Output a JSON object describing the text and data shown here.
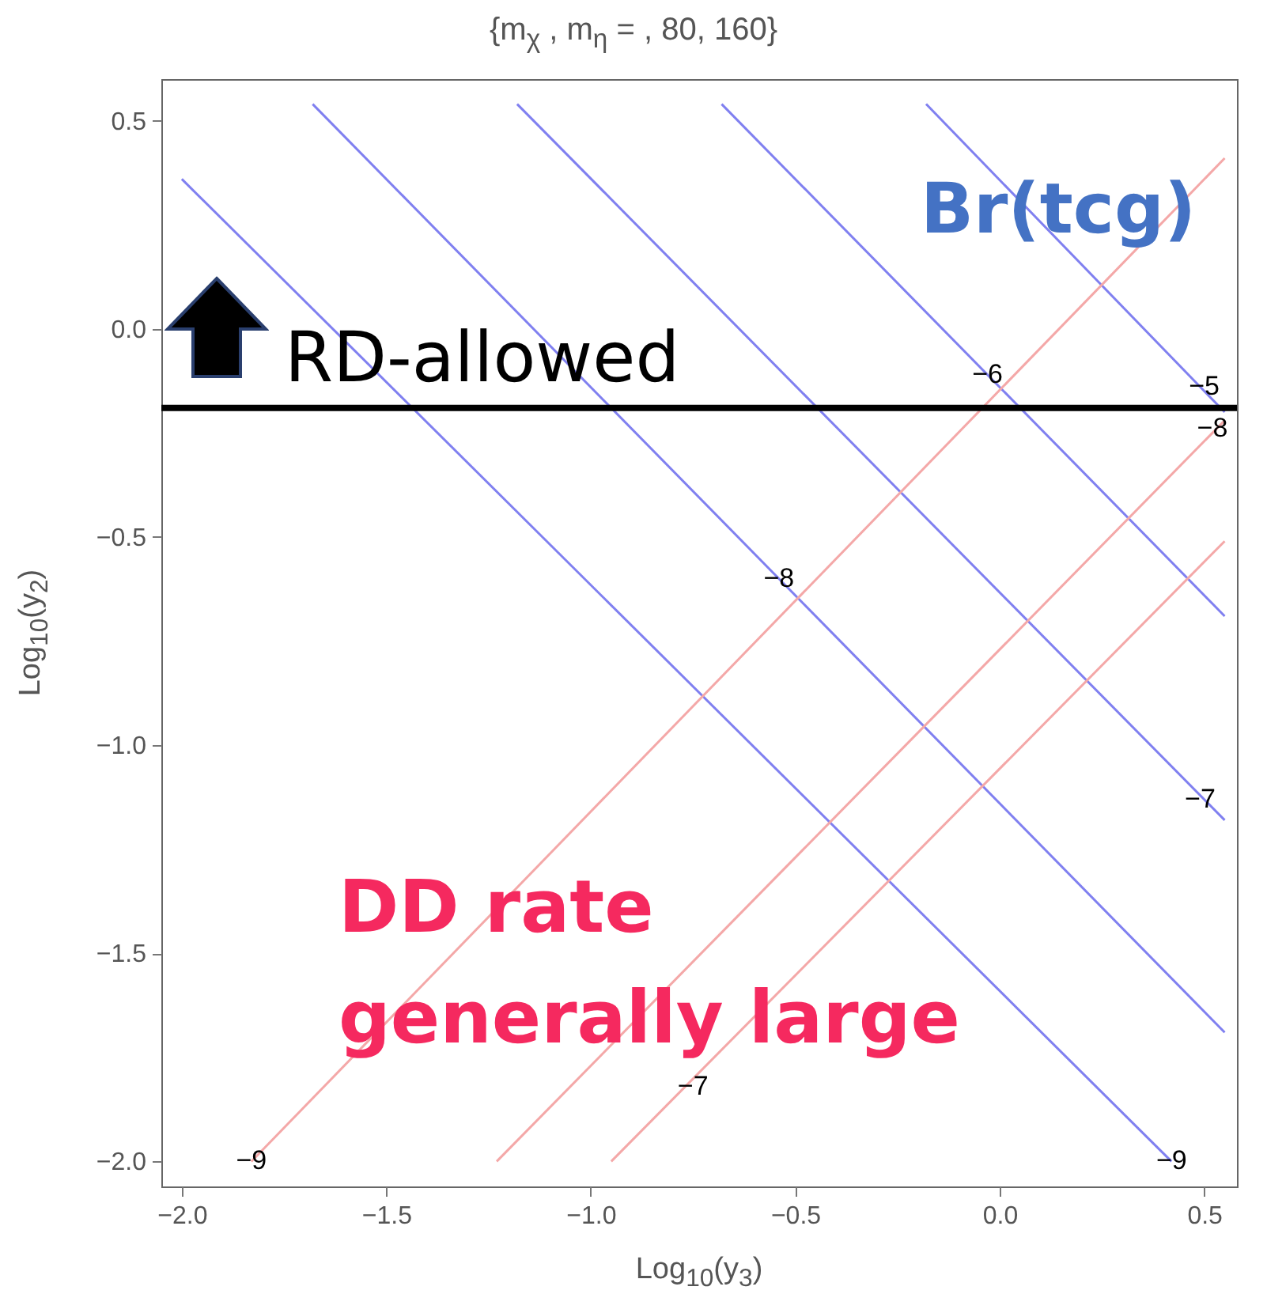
{
  "chart_data": {
    "type": "line",
    "title": "{m$_{χ}$ , m$_{η}$ = , 80, 160}",
    "xlabel": "Log$_{10}$(y$_{3}$)",
    "ylabel": "Log$_{10}$(y$_{2}$)",
    "series": [
      {
        "color": "#8080f0",
        "x": [
          -2.0,
          0.42
        ],
        "values": [
          0.36,
          -2.0
        ]
      },
      {
        "color": "#8080f0",
        "x": [
          -1.68,
          0.55
        ],
        "values": [
          0.54,
          -1.69
        ]
      },
      {
        "color": "#8080f0",
        "x": [
          -1.18,
          0.55
        ],
        "values": [
          0.54,
          -1.18
        ]
      },
      {
        "color": "#8080f0",
        "x": [
          -0.68,
          0.55
        ],
        "values": [
          0.54,
          -0.69
        ]
      },
      {
        "color": "#8080f0",
        "x": [
          -0.18,
          0.55
        ],
        "values": [
          0.54,
          -0.2
        ]
      },
      {
        "color": "#f4a8a8",
        "x": [
          -1.83,
          0.55
        ],
        "values": [
          -2.0,
          0.41
        ]
      },
      {
        "color": "#f4a8a8",
        "x": [
          -1.23,
          0.55
        ],
        "values": [
          -2.0,
          -0.22
        ]
      },
      {
        "color": "#f4a8a8",
        "x": [
          -0.95,
          0.55
        ],
        "values": [
          -2.0,
          -0.51
        ]
      }
    ],
    "xlim": [
      -2.05,
      0.58
    ],
    "ylim": [
      -2.06,
      0.6
    ],
    "xticks": [
      {
        "value": -2,
        "label": "−2.0"
      },
      {
        "value": -1.5,
        "label": "−1.5"
      },
      {
        "value": -1,
        "label": "−1.0"
      },
      {
        "value": -0.5,
        "label": "−0.5"
      },
      {
        "value": 0,
        "label": "0.0"
      },
      {
        "value": 0.5,
        "label": "0.5"
      }
    ],
    "yticks": [
      {
        "value": -2,
        "label": "−2.0"
      },
      {
        "value": -1.5,
        "label": "−1.5"
      },
      {
        "value": -1,
        "label": "−1.0"
      },
      {
        "value": -0.5,
        "label": "−0.5"
      },
      {
        "value": 0,
        "label": "0.0"
      },
      {
        "value": 0.5,
        "label": "0.5"
      }
    ],
    "ref_lines": [
      {
        "axis": "y",
        "value": -0.19,
        "label": "RD-allowed",
        "color": "#000000"
      }
    ],
    "annotations": [
      "Br(tcg)",
      "DD rate",
      "generally large",
      {
        "text": "−9",
        "x": -1.83,
        "y": -2.0
      },
      {
        "text": "−8",
        "x": -0.54,
        "y": -0.6
      },
      {
        "text": "−7",
        "x": 0.49,
        "y": -1.13
      },
      {
        "text": "−6",
        "x": -0.03,
        "y": -0.11
      },
      {
        "text": "−5",
        "x": 0.5,
        "y": -0.14
      },
      {
        "text": "−9",
        "x": 0.42,
        "y": -2.0
      },
      {
        "text": "−7",
        "x": -0.75,
        "y": -1.82
      },
      {
        "text": "−8",
        "x": 0.52,
        "y": -0.24
      }
    ],
    "grid": false,
    "legend": false
  }
}
